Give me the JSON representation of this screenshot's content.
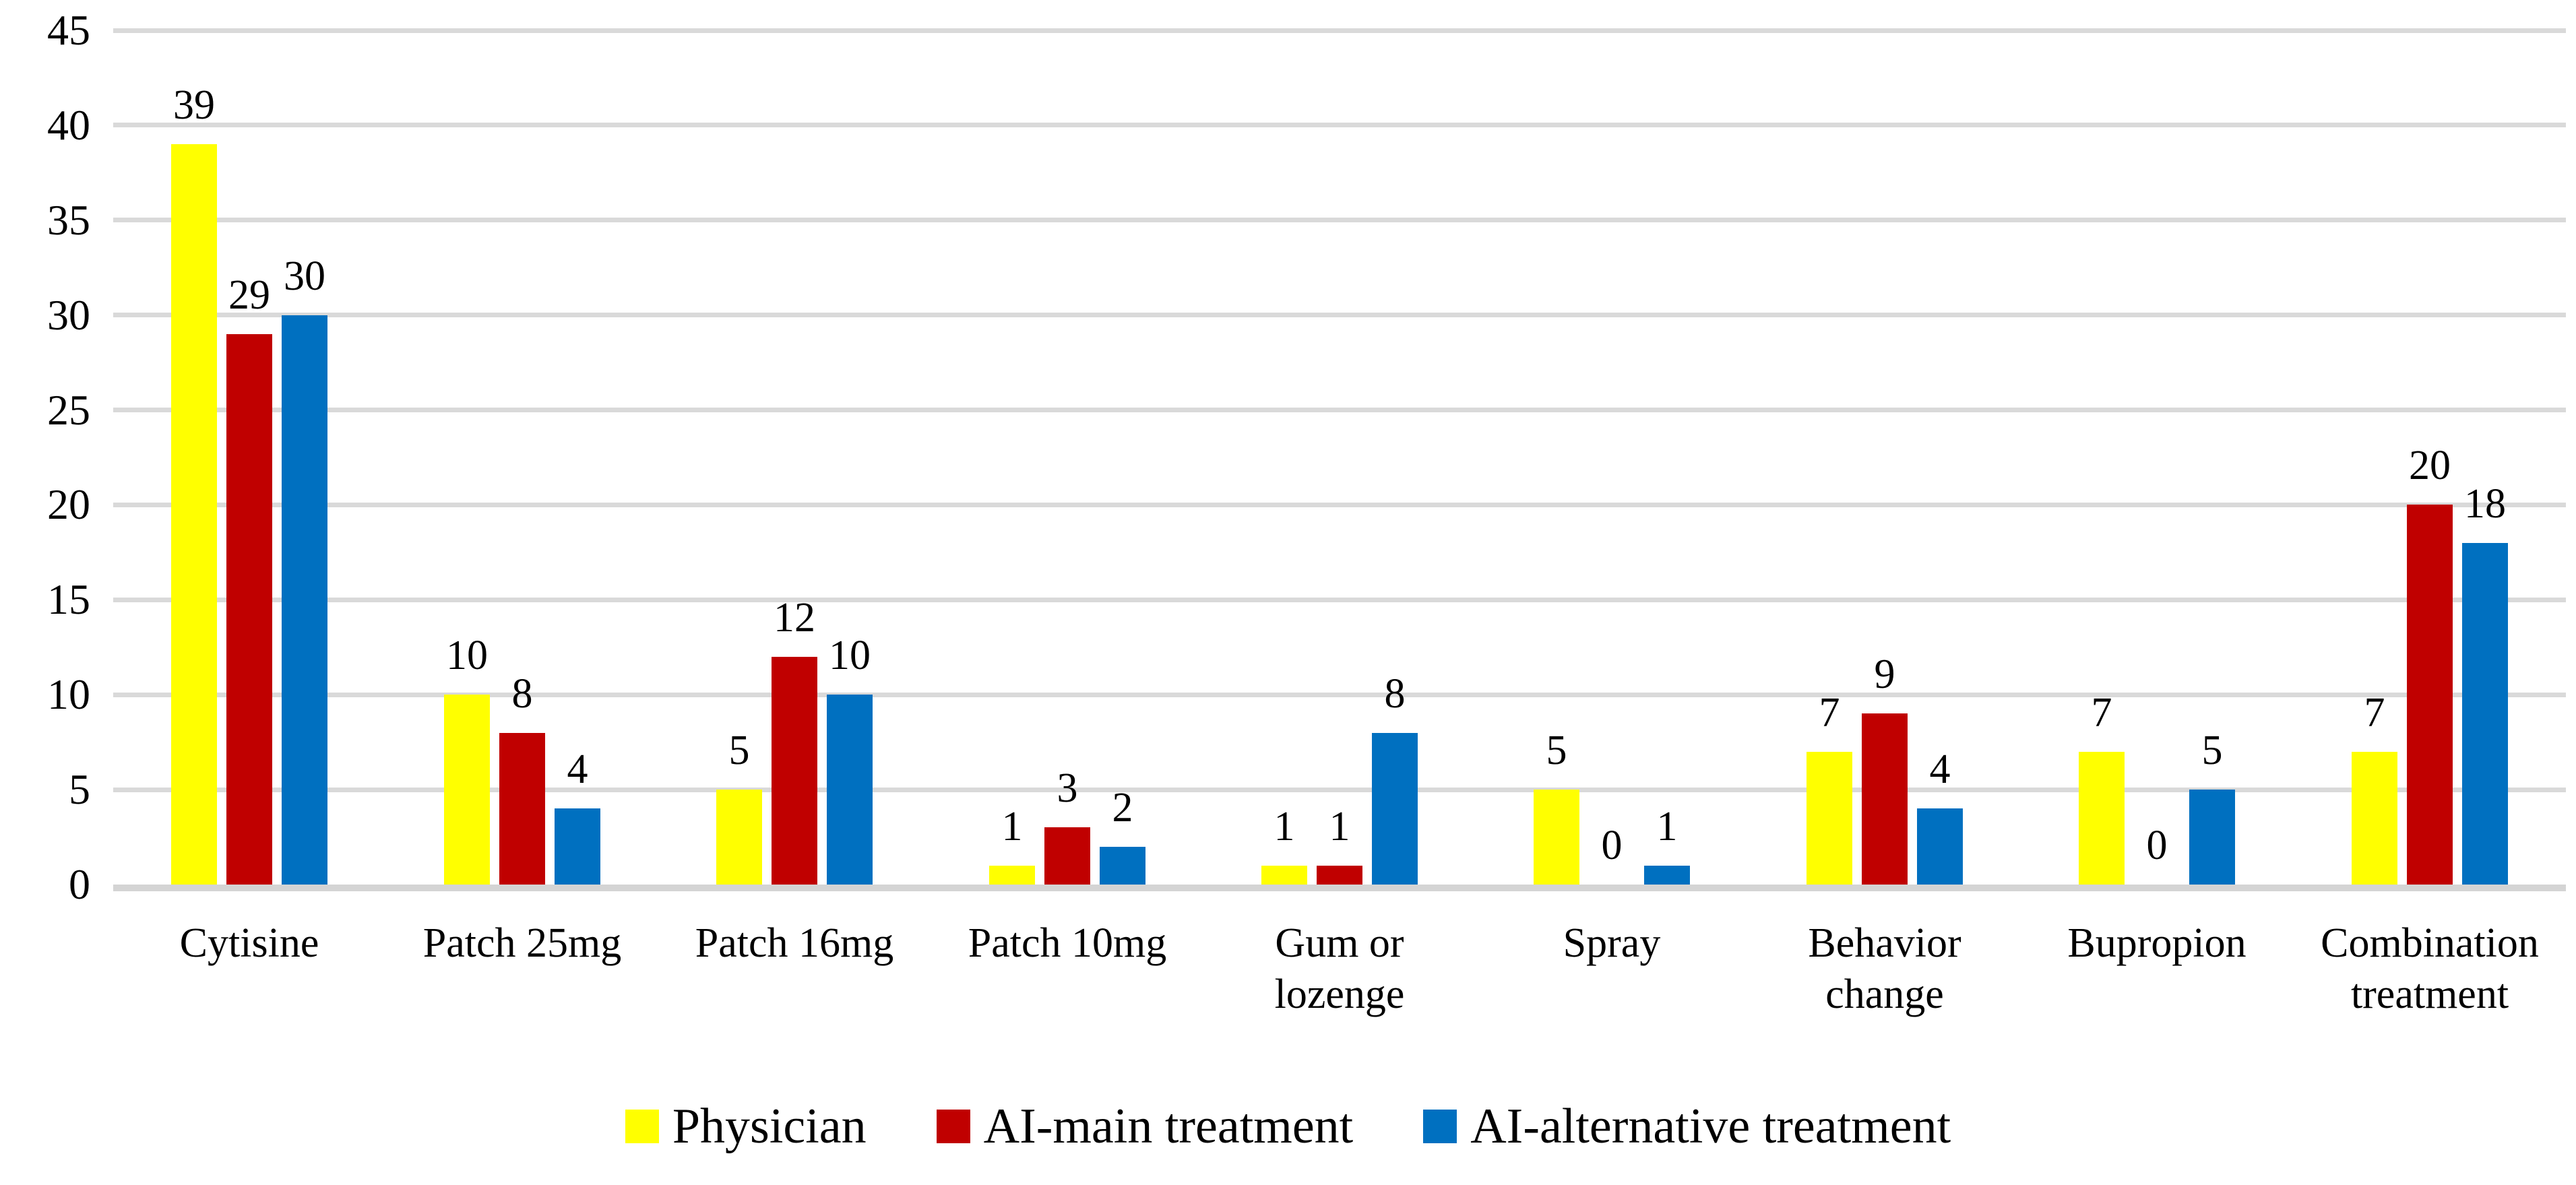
{
  "chart_data": {
    "type": "bar",
    "title": "",
    "xlabel": "",
    "ylabel": "",
    "categories": [
      "Cytisine",
      "Patch 25mg",
      "Patch 16mg",
      "Patch 10mg",
      "Gum or lozenge",
      "Spray",
      "Behavior change",
      "Bupropion",
      "Combination treatment"
    ],
    "series": [
      {
        "name": "Physician",
        "color": "#FFFF00",
        "values": [
          39,
          10,
          5,
          1,
          1,
          5,
          7,
          7,
          7
        ]
      },
      {
        "name": "AI-main treatment",
        "color": "#C00000",
        "values": [
          29,
          8,
          12,
          3,
          1,
          0,
          9,
          0,
          20
        ]
      },
      {
        "name": "AI-alternative treatment",
        "color": "#0070C0",
        "values": [
          30,
          4,
          10,
          2,
          8,
          1,
          4,
          5,
          18
        ]
      }
    ],
    "ylim": [
      0,
      45
    ],
    "yticks": [
      0,
      5,
      10,
      15,
      20,
      25,
      30,
      35,
      40,
      45
    ],
    "grid": true,
    "gridline_color": "#D9D9D9",
    "data_labels": true,
    "legend_position": "bottom",
    "background": "#FFFFFF",
    "text_color": "#000000"
  }
}
